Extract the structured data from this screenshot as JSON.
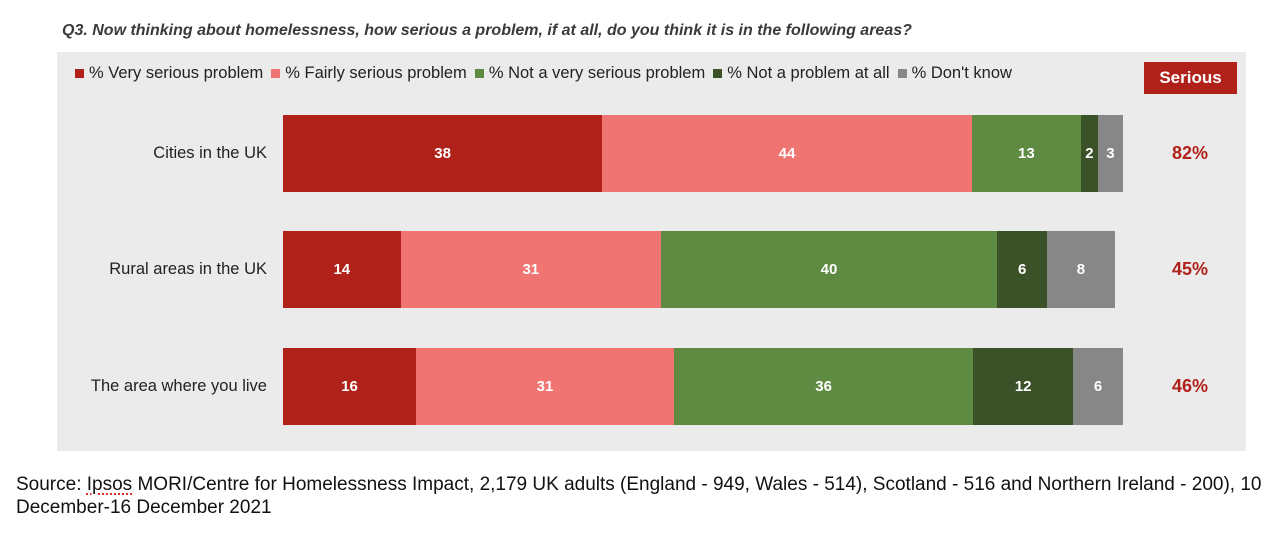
{
  "chart_data": {
    "type": "bar",
    "orientation": "horizontal",
    "stacked": true,
    "title": "Q3. Now thinking about homelessness, how serious a problem, if at all, do you think it is in the following areas?",
    "categories": [
      "Cities in the UK",
      "Rural areas in the UK",
      "The area where you live"
    ],
    "series": [
      {
        "name": "% Very serious problem",
        "color": "#b0211a",
        "values": [
          38,
          14,
          16
        ]
      },
      {
        "name": "% Fairly serious problem",
        "color": "#f07472",
        "values": [
          44,
          31,
          31
        ]
      },
      {
        "name": "% Not a very serious problem",
        "color": "#5e8a42",
        "values": [
          13,
          40,
          36
        ]
      },
      {
        "name": "% Not a problem at all",
        "color": "#3b5229",
        "values": [
          2,
          6,
          12
        ]
      },
      {
        "name": "% Don't know",
        "color": "#878787",
        "values": [
          3,
          8,
          6
        ]
      }
    ],
    "serious_label": "Serious",
    "serious_totals": [
      "82%",
      "45%",
      "46%"
    ],
    "xlim": [
      0,
      100
    ]
  },
  "source": {
    "prefix": "Source: ",
    "ipsos": "Ipsos",
    "rest": " MORI/Centre for Homelessness Impact, 2,179 UK adults (England - 949, Wales - 514), Scotland - 516 and Northern Ireland - 200), 10 December-16 December 2021"
  }
}
